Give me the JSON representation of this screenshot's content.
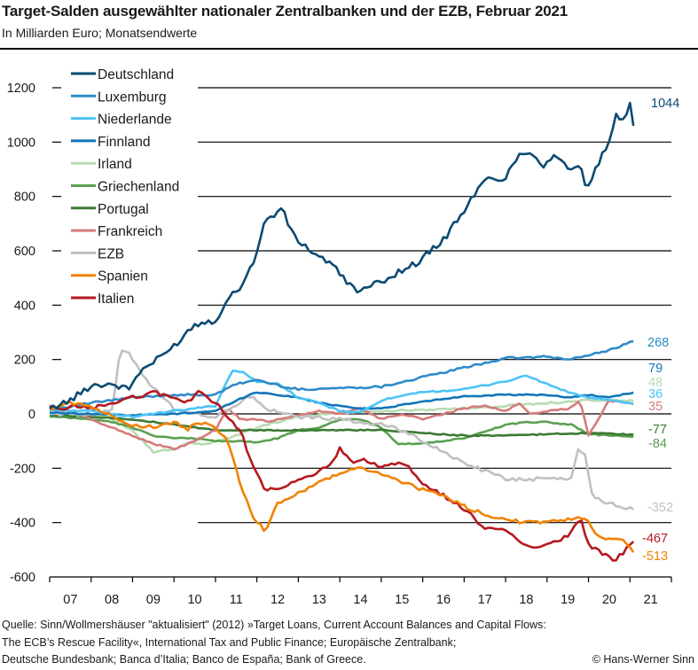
{
  "chart_data": {
    "type": "line",
    "title": "Target-Salden ausgewählter nationaler Zentralbanken und der EZB, Februar 2021",
    "subtitle": "In Milliarden Euro; Monatsendwerte",
    "xlabel": "",
    "ylabel": "",
    "ylim": [
      -600,
      1200
    ],
    "yticks": [
      1200,
      1000,
      800,
      600,
      400,
      200,
      0,
      -200,
      -400,
      -600
    ],
    "ytick_labels": [
      "1200",
      "1000",
      "800",
      "600",
      "400",
      "200",
      "0",
      "-200",
      "-400",
      "-600"
    ],
    "xlim": [
      2007.0,
      2022.0
    ],
    "xtick_labels": [
      "07",
      "08",
      "09",
      "10",
      "11",
      "12",
      "13",
      "14",
      "15",
      "16",
      "17",
      "18",
      "19",
      "20",
      "21"
    ],
    "grid": true,
    "legend_position": "top-left",
    "series": [
      {
        "name": "Deutschland",
        "color": "#0b4a73",
        "end_label": "1044",
        "x": [
          2007.0,
          2007.5,
          2008.0,
          2008.5,
          2008.9,
          2009.2,
          2009.6,
          2010.0,
          2010.5,
          2011.0,
          2011.3,
          2011.6,
          2011.9,
          2012.2,
          2012.6,
          2012.9,
          2013.3,
          2013.8,
          2014.2,
          2014.5,
          2014.9,
          2015.4,
          2015.9,
          2016.5,
          2017.0,
          2017.5,
          2018.0,
          2018.3,
          2018.6,
          2018.9,
          2019.2,
          2019.5,
          2019.8,
          2019.95,
          2020.2,
          2020.5,
          2020.65,
          2020.8,
          2021.0,
          2021.1
        ],
        "values": [
          20,
          50,
          105,
          110,
          90,
          160,
          200,
          250,
          330,
          345,
          420,
          470,
          550,
          710,
          755,
          650,
          600,
          550,
          480,
          450,
          480,
          520,
          560,
          640,
          750,
          860,
          870,
          950,
          970,
          910,
          960,
          900,
          920,
          810,
          910,
          1000,
          1100,
          1060,
          1140,
          1044
        ]
      },
      {
        "name": "Luxemburg",
        "color": "#2e8bc9",
        "end_label": "268",
        "x": [
          2007.0,
          2008.0,
          2009.0,
          2010.0,
          2011.0,
          2011.5,
          2012.0,
          2012.5,
          2013.0,
          2014.0,
          2015.0,
          2016.0,
          2017.0,
          2018.0,
          2019.0,
          2019.5,
          2020.0,
          2020.5,
          2021.1
        ],
        "values": [
          15,
          40,
          60,
          70,
          70,
          110,
          125,
          105,
          90,
          95,
          100,
          135,
          170,
          205,
          210,
          200,
          215,
          235,
          268
        ]
      },
      {
        "name": "Niederlande",
        "color": "#4dc3f5",
        "end_label": "36",
        "x": [
          2007.0,
          2008.0,
          2009.0,
          2010.0,
          2011.0,
          2011.4,
          2011.7,
          2012.0,
          2012.5,
          2013.0,
          2013.5,
          2014.0,
          2014.5,
          2015.0,
          2016.0,
          2017.0,
          2018.0,
          2018.5,
          2019.0,
          2019.5,
          2020.0,
          2020.5,
          2021.1
        ],
        "values": [
          15,
          10,
          -10,
          10,
          30,
          160,
          150,
          120,
          110,
          60,
          40,
          10,
          5,
          50,
          80,
          90,
          120,
          140,
          110,
          80,
          60,
          50,
          36
        ]
      },
      {
        "name": "Finnland",
        "color": "#1175b9",
        "end_label": "79",
        "x": [
          2007.0,
          2008.0,
          2009.0,
          2010.0,
          2011.0,
          2011.5,
          2012.0,
          2012.5,
          2013.0,
          2013.5,
          2014.0,
          2014.5,
          2015.0,
          2016.0,
          2017.0,
          2018.0,
          2019.0,
          2019.5,
          2020.0,
          2020.5,
          2021.1
        ],
        "values": [
          5,
          0,
          -5,
          0,
          10,
          50,
          80,
          70,
          60,
          40,
          30,
          20,
          20,
          45,
          65,
          70,
          70,
          60,
          70,
          60,
          79
        ]
      },
      {
        "name": "Irland",
        "color": "#b7dbb2",
        "end_label": "48",
        "x": [
          2007.0,
          2008.0,
          2008.5,
          2009.0,
          2009.5,
          2010.0,
          2010.3,
          2010.8,
          2011.5,
          2012.0,
          2012.5,
          2013.0,
          2014.0,
          2015.0,
          2016.0,
          2017.0,
          2018.0,
          2019.0,
          2020.0,
          2021.1
        ],
        "values": [
          0,
          0,
          -20,
          -60,
          -140,
          -130,
          -110,
          -110,
          -80,
          -50,
          -30,
          -10,
          5,
          10,
          15,
          20,
          30,
          40,
          50,
          48
        ]
      },
      {
        "name": "Griechenland",
        "color": "#5aa050",
        "end_label": "-84",
        "x": [
          2007.0,
          2008.0,
          2008.5,
          2009.0,
          2009.5,
          2010.0,
          2010.5,
          2011.0,
          2011.5,
          2012.0,
          2012.5,
          2013.0,
          2013.5,
          2014.0,
          2014.5,
          2015.0,
          2015.4,
          2016.0,
          2017.0,
          2018.0,
          2018.5,
          2019.0,
          2019.6,
          2020.0,
          2021.1
        ],
        "values": [
          -10,
          -20,
          -30,
          -50,
          -80,
          -90,
          -90,
          -100,
          -100,
          -105,
          -90,
          -60,
          -50,
          -20,
          -20,
          -50,
          -110,
          -110,
          -90,
          -40,
          -30,
          -30,
          -40,
          -75,
          -84
        ]
      },
      {
        "name": "Portugal",
        "color": "#3a7a33",
        "end_label": "-77",
        "x": [
          2007.0,
          2008.0,
          2009.0,
          2010.0,
          2011.0,
          2012.0,
          2013.0,
          2014.0,
          2015.0,
          2016.0,
          2017.0,
          2018.0,
          2019.0,
          2020.0,
          2021.1
        ],
        "values": [
          -5,
          -10,
          -20,
          -40,
          -60,
          -60,
          -60,
          -60,
          -60,
          -70,
          -80,
          -80,
          -75,
          -70,
          -77
        ]
      },
      {
        "name": "Frankreich",
        "color": "#d47c7a",
        "end_label": "35",
        "x": [
          2007.0,
          2007.5,
          2008.0,
          2008.5,
          2009.0,
          2009.5,
          2010.0,
          2010.5,
          2011.0,
          2011.3,
          2011.6,
          2012.0,
          2012.3,
          2012.8,
          2013.5,
          2014.0,
          2014.5,
          2015.0,
          2015.5,
          2016.0,
          2016.5,
          2017.0,
          2017.5,
          2018.0,
          2018.3,
          2018.6,
          2019.0,
          2019.5,
          2019.8,
          2020.0,
          2020.5,
          2021.1
        ],
        "values": [
          25,
          10,
          -20,
          -50,
          -80,
          -110,
          -130,
          -100,
          -60,
          20,
          -20,
          -20,
          -30,
          -10,
          10,
          0,
          20,
          -20,
          0,
          -20,
          0,
          20,
          30,
          10,
          40,
          0,
          10,
          20,
          50,
          -80,
          50,
          35
        ]
      },
      {
        "name": "EZB",
        "color": "#c0c0c0",
        "end_label": "-352",
        "x": [
          2007.0,
          2008.0,
          2008.5,
          2008.7,
          2008.9,
          2009.2,
          2009.6,
          2010.0,
          2010.5,
          2011.0,
          2011.5,
          2011.7,
          2011.9,
          2012.2,
          2012.6,
          2013.0,
          2014.0,
          2015.0,
          2015.5,
          2016.0,
          2016.5,
          2017.0,
          2017.5,
          2018.0,
          2019.0,
          2019.4,
          2019.6,
          2019.75,
          2019.9,
          2020.1,
          2020.5,
          2021.1
        ],
        "values": [
          0,
          0,
          10,
          230,
          230,
          150,
          80,
          20,
          0,
          -10,
          30,
          60,
          60,
          20,
          0,
          -10,
          -20,
          -40,
          -60,
          -100,
          -140,
          -180,
          -210,
          -240,
          -240,
          -240,
          -230,
          -130,
          -140,
          -300,
          -330,
          -352
        ]
      },
      {
        "name": "Spanien",
        "color": "#f08200",
        "end_label": "-513",
        "x": [
          2007.0,
          2007.5,
          2008.0,
          2008.5,
          2009.0,
          2009.5,
          2010.0,
          2010.3,
          2010.6,
          2011.0,
          2011.3,
          2011.6,
          2011.9,
          2012.2,
          2012.5,
          2012.9,
          2013.3,
          2013.8,
          2014.2,
          2014.5,
          2015.0,
          2015.5,
          2016.0,
          2016.5,
          2017.0,
          2017.5,
          2018.0,
          2018.5,
          2019.0,
          2019.5,
          2019.8,
          2020.0,
          2020.3,
          2020.6,
          2020.9,
          2021.1
        ],
        "values": [
          20,
          40,
          30,
          -10,
          -40,
          -50,
          -30,
          -60,
          -30,
          -50,
          -100,
          -260,
          -380,
          -430,
          -330,
          -300,
          -270,
          -230,
          -210,
          -200,
          -220,
          -250,
          -280,
          -300,
          -340,
          -370,
          -390,
          -400,
          -400,
          -390,
          -380,
          -400,
          -460,
          -460,
          -470,
          -513
        ]
      },
      {
        "name": "Italien",
        "color": "#b5191e",
        "end_label": "-467",
        "x": [
          2007.0,
          2007.3,
          2007.6,
          2008.0,
          2008.5,
          2009.0,
          2009.5,
          2010.0,
          2010.3,
          2010.6,
          2011.0,
          2011.3,
          2011.6,
          2011.9,
          2012.2,
          2012.5,
          2012.9,
          2013.3,
          2013.8,
          2014.0,
          2014.3,
          2014.6,
          2015.0,
          2015.4,
          2015.7,
          2016.0,
          2016.5,
          2017.0,
          2017.5,
          2018.0,
          2018.5,
          2019.0,
          2019.5,
          2019.8,
          2020.0,
          2020.3,
          2020.6,
          2020.85,
          2021.1
        ],
        "values": [
          30,
          10,
          30,
          20,
          40,
          60,
          80,
          60,
          40,
          80,
          40,
          -10,
          -60,
          -190,
          -280,
          -280,
          -250,
          -230,
          -180,
          -130,
          -180,
          -170,
          -200,
          -180,
          -200,
          -260,
          -300,
          -350,
          -420,
          -430,
          -490,
          -480,
          -450,
          -380,
          -480,
          -510,
          -540,
          -510,
          -467
        ]
      }
    ]
  },
  "footer": {
    "source_line1": "Quelle: Sinn/Wollmershäuser \"aktualisiert\" (2012) »Target Loans, Current Account Balances and Capital Flows:",
    "source_line2": "The ECB’s Rescue Facility«,  International Tax and Public Finance; Europäische Zentralbank;",
    "source_line3": "Deutsche Bundesbank; Banca d’Italia; Banco de España; Bank of Greece.",
    "copyright": "© Hans-Werner Sinn"
  }
}
